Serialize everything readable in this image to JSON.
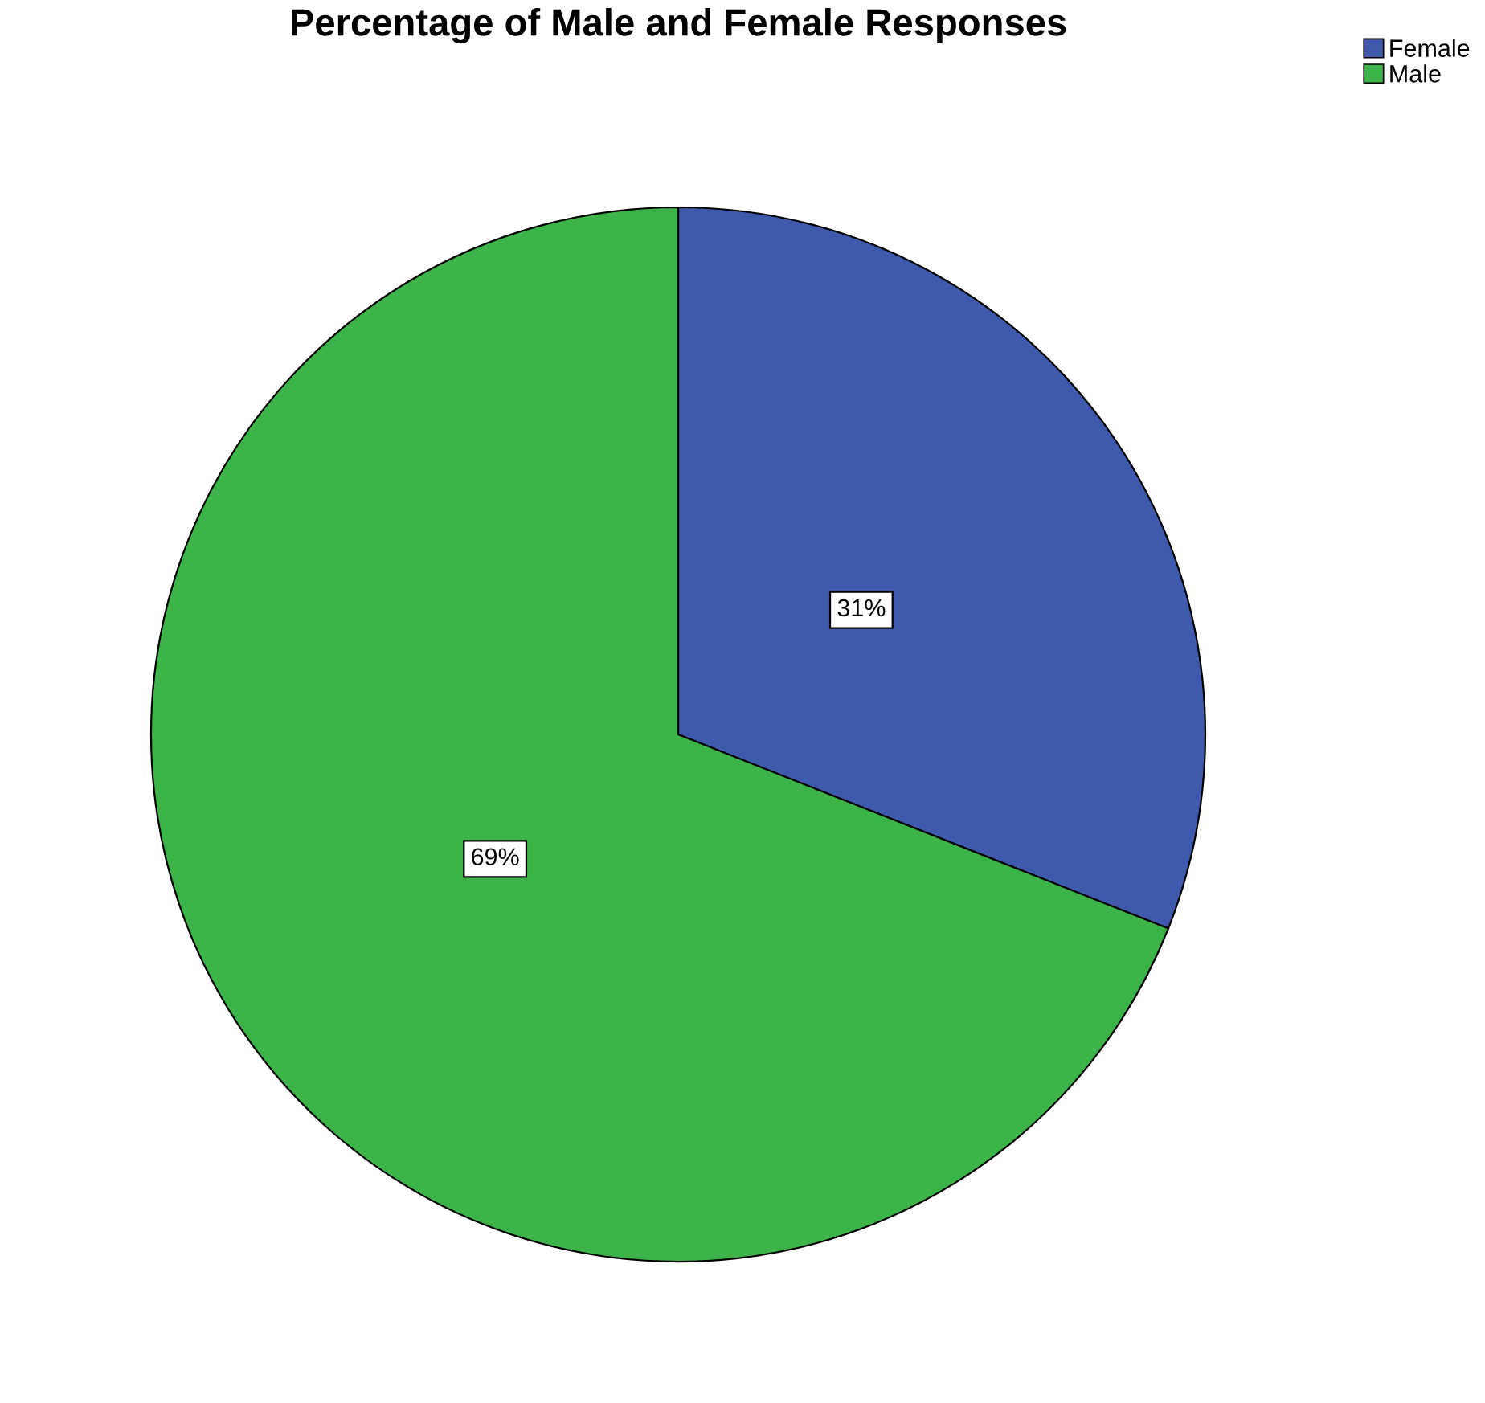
{
  "chart_data": {
    "type": "pie",
    "title": "Percentage of Male and Female Responses",
    "categories": [
      "Female",
      "Male"
    ],
    "values": [
      31,
      69
    ],
    "colors": [
      "#3f5aad",
      "#3cb44a"
    ],
    "value_labels": [
      "31%",
      "69%"
    ],
    "legend": "top right"
  }
}
